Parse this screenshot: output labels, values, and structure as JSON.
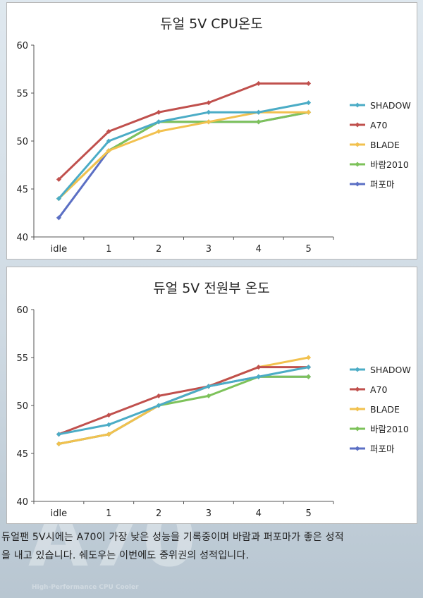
{
  "background": {
    "watermark_text": "A70",
    "watermark_sub": "High-Performance CPU Cooler"
  },
  "chart_data": [
    {
      "type": "line",
      "title": "듀얼 5V CPU온도",
      "categories": [
        "idle",
        "1",
        "2",
        "3",
        "4",
        "5"
      ],
      "ylim": [
        40,
        60
      ],
      "yticks": [
        40,
        45,
        50,
        55,
        60
      ],
      "grid": false,
      "legend_position": "right",
      "series": [
        {
          "name": "SHADOW",
          "color": "#4bacc6",
          "values": [
            44,
            50,
            52,
            53,
            53,
            54
          ]
        },
        {
          "name": "A70",
          "color": "#c0504d",
          "values": [
            46,
            51,
            53,
            54,
            56,
            56
          ]
        },
        {
          "name": "BLADE",
          "color": "#f2c14e",
          "values": [
            44,
            49,
            51,
            52,
            53,
            53
          ]
        },
        {
          "name": "바람2010",
          "color": "#7dc25a",
          "values": [
            44,
            49,
            52,
            52,
            52,
            53
          ]
        },
        {
          "name": "퍼포마",
          "color": "#5b6fc4",
          "values": [
            42,
            49,
            52,
            52,
            52,
            53
          ]
        }
      ]
    },
    {
      "type": "line",
      "title": "듀얼 5V 전원부  온도",
      "categories": [
        "idle",
        "1",
        "2",
        "3",
        "4",
        "5"
      ],
      "ylim": [
        40,
        60
      ],
      "yticks": [
        40,
        45,
        50,
        55,
        60
      ],
      "grid": false,
      "legend_position": "right",
      "series": [
        {
          "name": "SHADOW",
          "color": "#4bacc6",
          "values": [
            47,
            48,
            50,
            52,
            53,
            54
          ]
        },
        {
          "name": "A70",
          "color": "#c0504d",
          "values": [
            47,
            49,
            51,
            52,
            54,
            54
          ]
        },
        {
          "name": "BLADE",
          "color": "#f2c14e",
          "values": [
            46,
            47,
            50,
            52,
            54,
            55
          ]
        },
        {
          "name": "바람2010",
          "color": "#7dc25a",
          "values": [
            46,
            47,
            50,
            51,
            53,
            53
          ]
        },
        {
          "name": "퍼포마",
          "color": "#5b6fc4",
          "values": [
            46,
            47,
            50,
            52,
            53,
            53
          ]
        }
      ]
    }
  ],
  "caption": {
    "line1": "듀얼팬 5V시에는 A70이 가장 낮은 성능을 기록중이며 바람과 퍼포마가 좋은 성적",
    "line2": "을 내고 있습니다. 쉐도우는 이번에도 중위권의 성적입니다."
  }
}
